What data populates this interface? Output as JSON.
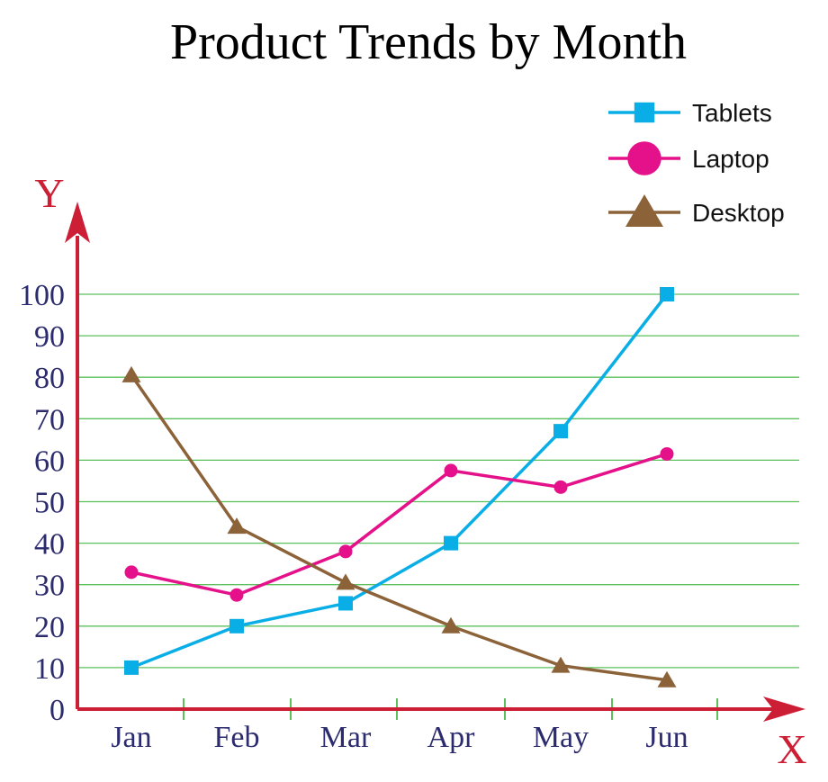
{
  "chart_data": {
    "type": "line",
    "title": "Product Trends by Month",
    "xlabel": "X",
    "ylabel": "Y",
    "categories": [
      "Jan",
      "Feb",
      "Mar",
      "Apr",
      "May",
      "Jun"
    ],
    "y_ticks": [
      "0",
      "10",
      "20",
      "30",
      "40",
      "50",
      "60",
      "70",
      "80",
      "90",
      "100"
    ],
    "ylim": [
      0,
      100
    ],
    "grid": true,
    "legend_position": "top-right",
    "series": [
      {
        "name": "Tablets",
        "marker": "square",
        "color": "#0aaee6",
        "values": [
          10,
          20,
          25.5,
          40,
          67,
          100
        ]
      },
      {
        "name": "Laptop",
        "marker": "circle",
        "color": "#e5118a",
        "values": [
          33,
          27.5,
          38,
          57.5,
          53.5,
          61.5
        ]
      },
      {
        "name": "Desktop",
        "marker": "triangle",
        "color": "#8c6239",
        "values": [
          80.5,
          44,
          30.5,
          20,
          10.5,
          7
        ]
      }
    ],
    "colors": {
      "axis": "#cc1f36",
      "grid": "#5cc15c",
      "tick_text": "#2b2b6e"
    }
  }
}
